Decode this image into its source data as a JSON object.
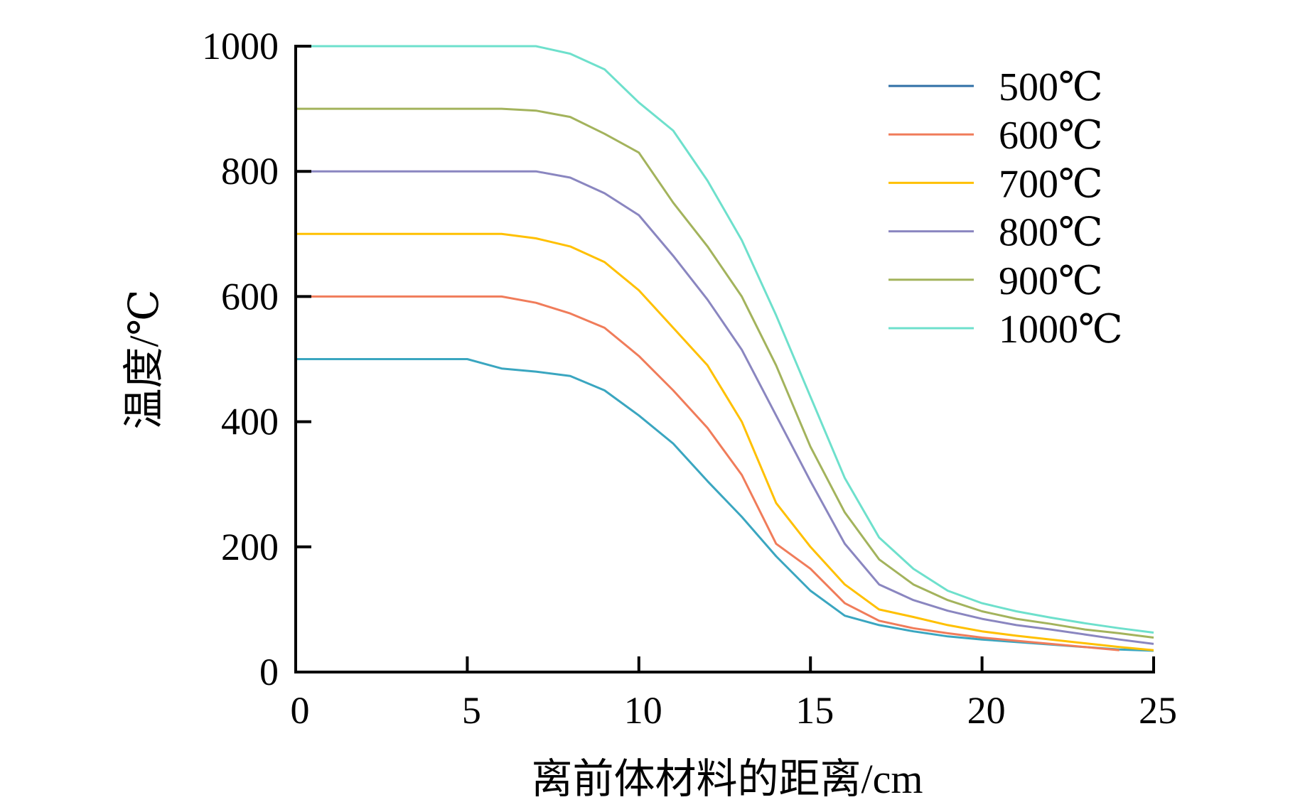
{
  "chart_data": {
    "type": "line",
    "title": "",
    "xlabel": "离前体材料的距离/cm",
    "ylabel": "温度/℃",
    "xlim": [
      0,
      25
    ],
    "ylim": [
      0,
      1000
    ],
    "xticks": [
      0,
      5,
      10,
      15,
      20,
      25
    ],
    "yticks": [
      0,
      200,
      400,
      600,
      800,
      1000
    ],
    "xtick_labels": [
      "0",
      "5",
      "10",
      "15",
      "20",
      "25"
    ],
    "ytick_labels": [
      "0",
      "200",
      "400",
      "600",
      "800",
      "1000"
    ],
    "grid": false,
    "legend_position": "top-right",
    "x": [
      0,
      1,
      2,
      3,
      4,
      5,
      6,
      7,
      8,
      9,
      10,
      11,
      12,
      13,
      14,
      15,
      16,
      17,
      18,
      19,
      20,
      21,
      22,
      23,
      24,
      25
    ],
    "series": [
      {
        "name": "500℃",
        "color": "#2f6fa6",
        "line_color": "#3aa6c0",
        "values": [
          500,
          500,
          500,
          500,
          500,
          500,
          485,
          480,
          473,
          450,
          410,
          365,
          305,
          248,
          185,
          130,
          90,
          75,
          65,
          57,
          52,
          48,
          44,
          40,
          36,
          34
        ]
      },
      {
        "name": "600℃",
        "color": "#f07c5a",
        "values": [
          600,
          600,
          600,
          600,
          600,
          600,
          600,
          590,
          573,
          550,
          505,
          450,
          390,
          315,
          205,
          165,
          110,
          82,
          70,
          62,
          55,
          50,
          45,
          40,
          35,
          null
        ]
      },
      {
        "name": "700℃",
        "color": "#ffc000",
        "values": [
          700,
          700,
          700,
          700,
          700,
          700,
          700,
          693,
          680,
          655,
          610,
          550,
          490,
          400,
          270,
          200,
          140,
          100,
          88,
          75,
          65,
          58,
          52,
          46,
          40,
          35
        ]
      },
      {
        "name": "800℃",
        "color": "#8a86c0",
        "values": [
          800,
          800,
          800,
          800,
          800,
          800,
          800,
          800,
          790,
          765,
          730,
          665,
          595,
          515,
          410,
          305,
          205,
          140,
          115,
          98,
          85,
          75,
          68,
          60,
          52,
          45
        ]
      },
      {
        "name": "900℃",
        "color": "#a3b35c",
        "values": [
          900,
          900,
          900,
          900,
          900,
          900,
          900,
          897,
          887,
          860,
          830,
          750,
          680,
          600,
          490,
          360,
          255,
          180,
          140,
          115,
          97,
          85,
          77,
          68,
          62,
          55
        ]
      },
      {
        "name": "1000℃",
        "color": "#6ee0cc",
        "values": [
          1000,
          1000,
          1000,
          1000,
          1000,
          1000,
          1000,
          1000,
          988,
          963,
          910,
          865,
          785,
          690,
          570,
          440,
          310,
          215,
          165,
          130,
          110,
          97,
          87,
          78,
          70,
          63
        ]
      }
    ]
  }
}
